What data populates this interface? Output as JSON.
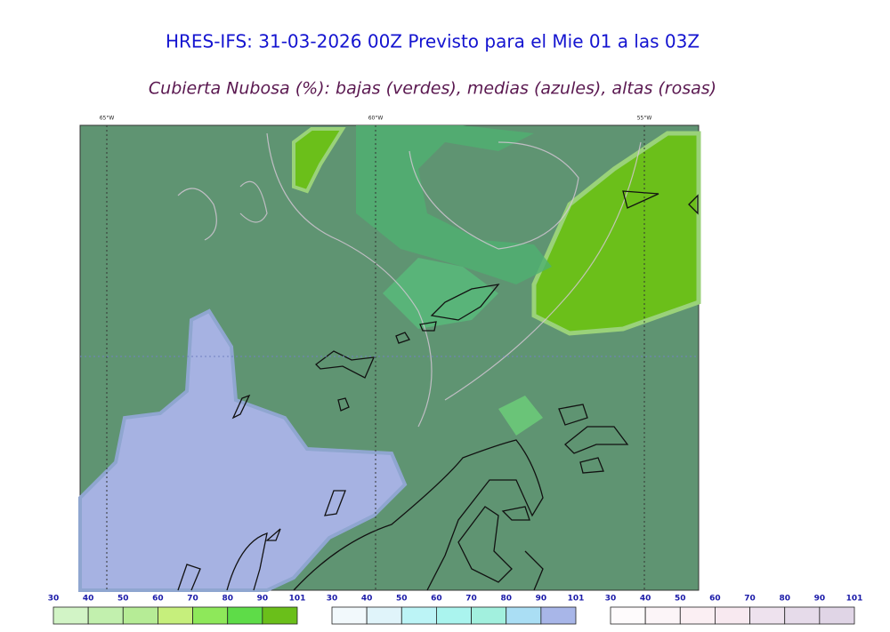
{
  "header": {
    "title": "HRES-IFS: 31-03-2026 00Z Previsto para el Mie 01 a las 03Z",
    "subtitle": "Cubierta Nubosa (%): bajas (verdes), medias (azules), altas (rosas)"
  },
  "map": {
    "longitude_labels": [
      "65°W",
      "60°W",
      "55°W"
    ]
  },
  "colorbars": [
    {
      "ticks": [
        30,
        40,
        50,
        60,
        70,
        80,
        90,
        101
      ],
      "colors": [
        "#d2f4c6",
        "#c2f0ae",
        "#b6ec96",
        "#c6ef7c",
        "#8ee85a",
        "#5edc48",
        "#6abf1a"
      ]
    },
    {
      "ticks": [
        30,
        40,
        50,
        60,
        70,
        80,
        90,
        101
      ],
      "colors": [
        "#f2f9fc",
        "#e0f4fa",
        "#bcf4f6",
        "#aaf4ee",
        "#a2f0de",
        "#aadef4",
        "#a8b6e8"
      ]
    },
    {
      "ticks": [
        30,
        40,
        50,
        60,
        70,
        80,
        90,
        101
      ],
      "colors": [
        "#fefbfc",
        "#fcf5f8",
        "#fbeff3",
        "#f8e9f0",
        "#eee2ee",
        "#e6dbea",
        "#e0d5e6"
      ]
    }
  ]
}
